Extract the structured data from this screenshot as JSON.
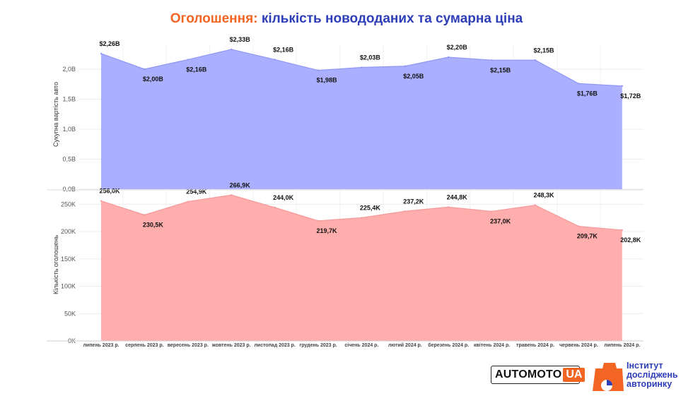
{
  "title": {
    "part1": "Оголошення:",
    "part2": "кількість новододаних та сумарна ціна"
  },
  "chart_data": [
    {
      "type": "area",
      "ylabel": "Сукупна вартість авто",
      "color": "#aab0ff",
      "line_color": "#8f96f5",
      "ylim": [
        0,
        2.4
      ],
      "yticks": [
        0,
        0.5,
        1.0,
        1.5,
        2.0
      ],
      "ytick_labels": [
        "0,0B",
        "0,5B",
        "1,0B",
        "1,5B",
        "2,0B"
      ],
      "categories": [
        "липень 2023 р.",
        "серпень 2023 р.",
        "вересень 2023 р.",
        "жовтень 2023 р.",
        "листопад 2023 р.",
        "грудень 2023 р.",
        "січень 2024 р.",
        "лютий 2024 р.",
        "березень 2024 р.",
        "квітень 2024 р.",
        "травень 2024 р.",
        "червень 2024 р.",
        "липень 2024 р."
      ],
      "values": [
        2.26,
        2.0,
        2.16,
        2.33,
        2.16,
        1.98,
        2.03,
        2.05,
        2.2,
        2.15,
        2.15,
        1.76,
        1.72
      ],
      "data_labels": [
        "$2,26B",
        "$2,00B",
        "$2,16B",
        "$2,33B",
        "$2,16B",
        "$1,98B",
        "$2,03B",
        "$2,05B",
        "$2,20B",
        "$2,15B",
        "$2,15B",
        "$1,76B",
        "$1,72B"
      ],
      "grid": true
    },
    {
      "type": "area",
      "ylabel": "Кількість оголошень",
      "color": "#ffadad",
      "line_color": "#f59a9a",
      "ylim": [
        0,
        275
      ],
      "yticks": [
        0,
        50,
        100,
        150,
        200,
        250
      ],
      "ytick_labels": [
        "0K",
        "50K",
        "100K",
        "150K",
        "200K",
        "250K"
      ],
      "categories": [
        "липень 2023 р.",
        "серпень 2023 р.",
        "вересень 2023 р.",
        "жовтень 2023 р.",
        "листопад 2023 р.",
        "грудень 2023 р.",
        "січень 2024 р.",
        "лютий 2024 р.",
        "березень 2024 р.",
        "квітень 2024 р.",
        "травень 2024 р.",
        "червень 2024 р.",
        "липень 2024 р."
      ],
      "values": [
        256.0,
        230.5,
        254.9,
        266.9,
        244.0,
        219.7,
        225.4,
        237.2,
        244.8,
        237.0,
        248.3,
        209.7,
        202.8
      ],
      "data_labels": [
        "256,0K",
        "230,5K",
        "254,9K",
        "266,9K",
        "244,0K",
        "219,7K",
        "225,4K",
        "237,2K",
        "244,8K",
        "237,0K",
        "248,3K",
        "209,7K",
        "202,8K"
      ],
      "grid": true
    }
  ],
  "logos": {
    "automoto_main": "AUTOMOTO",
    "automoto_accent": "UA",
    "institute_line1": "Інститут",
    "institute_line2": "досліджень",
    "institute_line3": "авторинку"
  }
}
